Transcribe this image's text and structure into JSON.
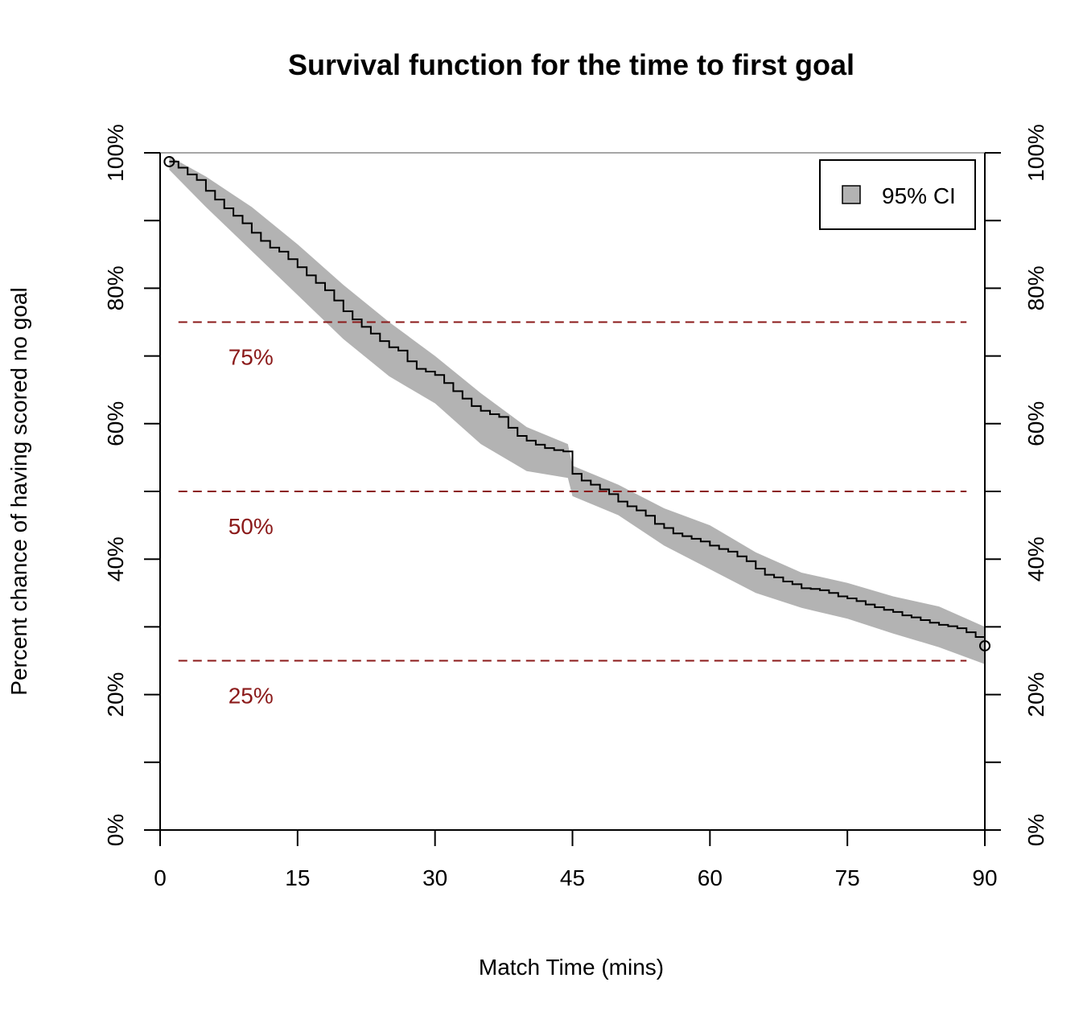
{
  "chart_data": {
    "type": "line",
    "title": "Survival function for the time to first goal",
    "xlabel": "Match Time (mins)",
    "ylabel": "Percent chance of having scored no goal",
    "xlim": [
      0,
      90
    ],
    "ylim": [
      0,
      100
    ],
    "x_ticks": [
      "0",
      "15",
      "30",
      "45",
      "60",
      "75",
      "90"
    ],
    "x_tick_values": [
      0,
      15,
      30,
      45,
      60,
      75,
      90
    ],
    "y_ticks": [
      "0%",
      "20%",
      "40%",
      "60%",
      "80%",
      "100%"
    ],
    "y_tick_values": [
      0,
      20,
      40,
      60,
      80,
      100
    ],
    "y_minor_tick_values": [
      10,
      30,
      50,
      70,
      90
    ],
    "legend": {
      "label": "95% CI",
      "position": "top-right",
      "color": "#b3b3b3"
    },
    "reference_lines": [
      {
        "y": 75,
        "label": "75%",
        "color": "#8b1a1a"
      },
      {
        "y": 50,
        "label": "50%",
        "color": "#8b1a1a"
      },
      {
        "y": 25,
        "label": "25%",
        "color": "#8b1a1a"
      }
    ],
    "series": [
      {
        "type": "step",
        "color": "#000000",
        "x": [
          1,
          2,
          3,
          4,
          5,
          6,
          7,
          8,
          9,
          10,
          11,
          12,
          13,
          14,
          15,
          16,
          17,
          18,
          19,
          20,
          21,
          22,
          23,
          24,
          25,
          26,
          27,
          28,
          29,
          30,
          31,
          32,
          33,
          34,
          35,
          36,
          37,
          38,
          39,
          40,
          41,
          42,
          43,
          44,
          45,
          46,
          47,
          48,
          49,
          50,
          51,
          52,
          53,
          54,
          55,
          56,
          57,
          58,
          59,
          60,
          61,
          62,
          63,
          64,
          65,
          66,
          67,
          68,
          69,
          70,
          71,
          72,
          73,
          74,
          75,
          76,
          77,
          78,
          79,
          80,
          81,
          82,
          83,
          84,
          85,
          86,
          87,
          88,
          89,
          90
        ],
        "y": [
          98.7,
          97.8,
          96.8,
          96.0,
          94.4,
          93.1,
          91.8,
          90.7,
          89.6,
          88.2,
          87.0,
          86.0,
          85.4,
          84.3,
          83.1,
          81.9,
          80.8,
          79.7,
          78.2,
          76.6,
          75.4,
          74.3,
          73.3,
          72.2,
          71.3,
          70.8,
          69.2,
          68.1,
          67.7,
          67.2,
          66.0,
          64.8,
          63.7,
          62.6,
          61.9,
          61.4,
          61.0,
          59.4,
          58.2,
          57.5,
          56.9,
          56.4,
          56.1,
          55.9,
          52.6,
          51.6,
          51.0,
          50.3,
          49.6,
          48.5,
          47.8,
          47.2,
          46.4,
          45.2,
          44.6,
          43.8,
          43.4,
          43.0,
          42.6,
          42.0,
          41.5,
          41.1,
          40.4,
          39.7,
          38.6,
          37.7,
          37.3,
          36.7,
          36.3,
          35.7,
          35.6,
          35.4,
          35.0,
          34.5,
          34.2,
          33.8,
          33.3,
          32.9,
          32.5,
          32.2,
          31.7,
          31.4,
          31.0,
          30.6,
          30.3,
          30.1,
          29.8,
          29.2,
          28.5,
          27.2
        ]
      },
      {
        "name": "95% CI",
        "type": "band",
        "color": "#b3b3b3",
        "x": [
          1,
          5,
          10,
          15,
          20,
          25,
          30,
          35,
          40,
          44.5,
          45,
          50,
          55,
          60,
          65,
          70,
          75,
          80,
          85,
          90
        ],
        "upper": [
          99.5,
          96.5,
          92.0,
          86.5,
          80.5,
          75.0,
          70.0,
          64.5,
          59.5,
          57.0,
          53.8,
          51.0,
          47.5,
          45.0,
          41.0,
          38.0,
          36.5,
          34.5,
          33.0,
          30.0
        ],
        "lower": [
          97.5,
          92.0,
          85.5,
          79.0,
          72.5,
          67.0,
          63.0,
          57.0,
          53.0,
          52.0,
          49.3,
          46.5,
          42.0,
          38.5,
          35.0,
          32.8,
          31.2,
          29.0,
          27.0,
          24.5
        ]
      }
    ]
  }
}
